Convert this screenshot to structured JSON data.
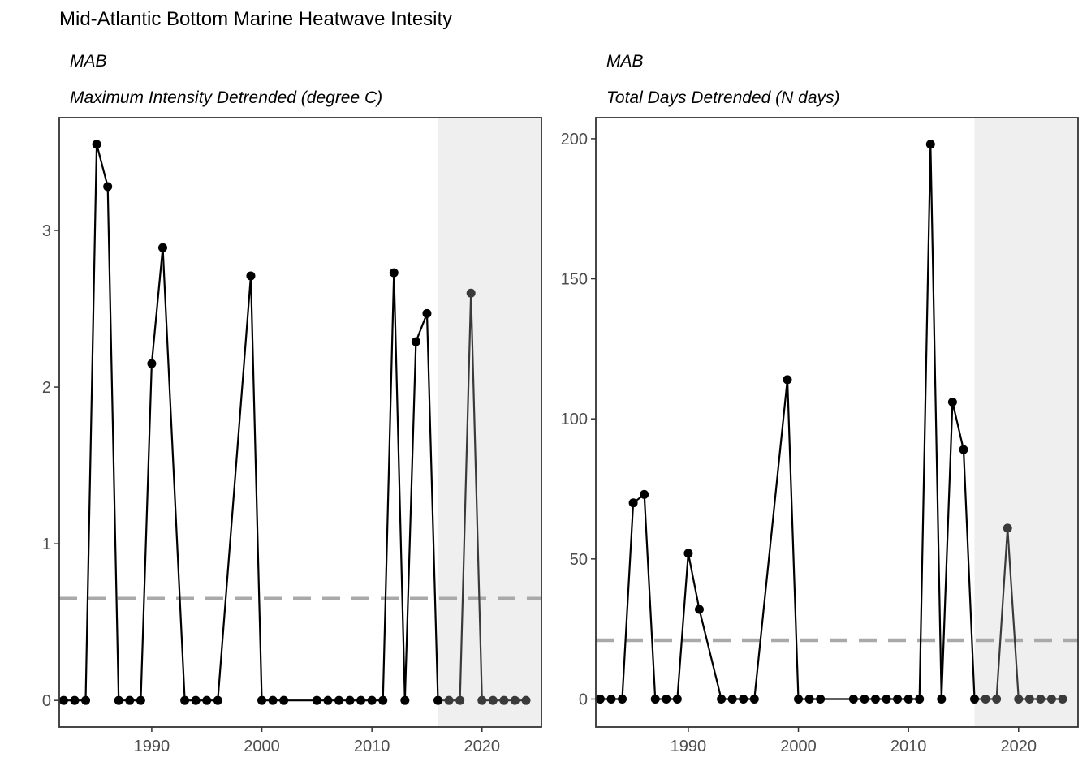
{
  "title": "Mid-Atlantic Bottom Marine Heatwave Intesity",
  "chart_data": [
    {
      "type": "line",
      "region": "MAB",
      "subtitle": "Maximum Intensity Detrended (degree C)",
      "xlim": [
        1981.6,
        2025.4
      ],
      "ylim": [
        -0.17,
        3.72
      ],
      "xticks": [
        1990,
        2000,
        2010,
        2020
      ],
      "yticks": [
        0,
        1,
        2,
        3
      ],
      "highlight_from": 2016,
      "reference_line": 0.65,
      "x": [
        1982,
        1983,
        1984,
        1985,
        1986,
        1987,
        1988,
        1989,
        1990,
        1991,
        1993,
        1994,
        1995,
        1996,
        1999,
        2000,
        2001,
        2002,
        2005,
        2006,
        2007,
        2008,
        2009,
        2010,
        2011,
        2012,
        2013,
        2014,
        2015,
        2016,
        2017,
        2018,
        2019,
        2020,
        2021,
        2022,
        2023,
        2024
      ],
      "y": [
        0,
        0,
        0,
        3.55,
        3.28,
        0,
        0,
        0,
        2.15,
        2.89,
        0,
        0,
        0,
        0,
        2.71,
        0,
        0,
        0,
        0,
        0,
        0,
        0,
        0,
        0,
        0,
        2.73,
        0,
        2.29,
        2.47,
        0,
        0,
        0,
        2.6,
        0,
        0,
        0,
        0,
        0
      ],
      "grid": false
    },
    {
      "type": "line",
      "region": "MAB",
      "subtitle": "Total Days Detrended (N days)",
      "xlim": [
        1981.6,
        2025.4
      ],
      "ylim": [
        -10,
        207.5
      ],
      "xticks": [
        1990,
        2000,
        2010,
        2020
      ],
      "yticks": [
        0,
        50,
        100,
        150,
        200
      ],
      "highlight_from": 2016,
      "reference_line": 21,
      "x": [
        1982,
        1983,
        1984,
        1985,
        1986,
        1987,
        1988,
        1989,
        1990,
        1991,
        1993,
        1994,
        1995,
        1996,
        1999,
        2000,
        2001,
        2002,
        2005,
        2006,
        2007,
        2008,
        2009,
        2010,
        2011,
        2012,
        2013,
        2014,
        2015,
        2016,
        2017,
        2018,
        2019,
        2020,
        2021,
        2022,
        2023,
        2024
      ],
      "y": [
        0,
        0,
        0,
        70,
        73,
        0,
        0,
        0,
        52,
        32,
        0,
        0,
        0,
        0,
        114,
        0,
        0,
        0,
        0,
        0,
        0,
        0,
        0,
        0,
        0,
        198,
        0,
        106,
        89,
        0,
        0,
        0,
        61,
        0,
        0,
        0,
        0,
        0
      ],
      "grid": false
    }
  ]
}
